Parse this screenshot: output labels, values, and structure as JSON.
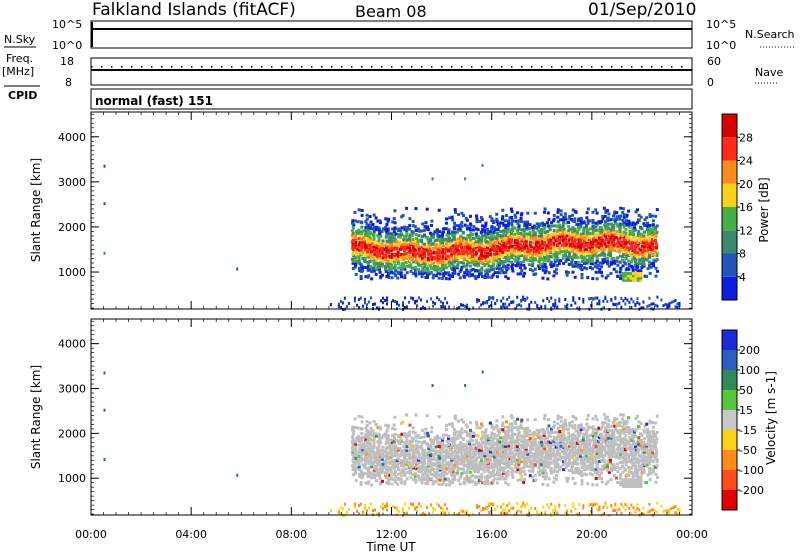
{
  "header": {
    "station": "Falkland Islands (fitACF)",
    "beam": "Beam 08",
    "date": "01/Sep/2010"
  },
  "status_panels": {
    "nsky_label": "N.Sky",
    "nsearch_label": "N.Search",
    "freq_label_1": "Freq.",
    "freq_label_2": "[MHz]",
    "nave_label": "Nave",
    "cpid_label": "CPID",
    "nsky_ticks": [
      "10^5",
      "10^0"
    ],
    "nsearch_ticks": [
      "10^5",
      "10^0"
    ],
    "freq_ticks": [
      "18",
      "8"
    ],
    "nave_ticks": [
      "60",
      "0"
    ],
    "cpid_text": "normal (fast) 151"
  },
  "chart_data": [
    {
      "type": "heatmap",
      "xlabel": "Time UT",
      "ylabel": "Slant Range [km]",
      "x_ticks": [
        "00:00",
        "04:00",
        "08:00",
        "12:00",
        "16:00",
        "20:00",
        "00:00"
      ],
      "y_ticks": [
        1000,
        2000,
        3000,
        4000
      ],
      "ylim": [
        180,
        4550
      ],
      "xlim_hours": [
        0,
        24
      ],
      "colorbar": {
        "label": "Power [dB]",
        "ticks": [
          4,
          8,
          12,
          16,
          20,
          24,
          28
        ],
        "range": [
          0,
          32
        ],
        "colors": [
          "#0a1fe0",
          "#2255b8",
          "#3a8a6a",
          "#44b040",
          "#ffd21a",
          "#ff8c1a",
          "#ff2a1a",
          "#d80000"
        ]
      },
      "scatter_band": {
        "start_h": 10.4,
        "end_h": 22.6,
        "center_km": [
          1600,
          1450,
          1500,
          1650,
          1700,
          1620
        ],
        "top_km": 2300
      }
    },
    {
      "type": "heatmap",
      "xlabel": "Time UT",
      "ylabel": "Slant Range [km]",
      "x_ticks": [
        "00:00",
        "04:00",
        "08:00",
        "12:00",
        "16:00",
        "20:00",
        "00:00"
      ],
      "y_ticks": [
        1000,
        2000,
        3000,
        4000
      ],
      "ylim": [
        180,
        4550
      ],
      "xlim_hours": [
        0,
        24
      ],
      "colorbar": {
        "label": "Velocity [m s-1]",
        "ticks": [
          200,
          100,
          50,
          15,
          -15,
          -50,
          -100,
          -200
        ],
        "colors": [
          "#1a2ad8",
          "#2a5fc0",
          "#2f8a5a",
          "#55c83a",
          "#c8c8c8",
          "#ffd21a",
          "#ff8c1a",
          "#ff4a1a",
          "#e00000"
        ]
      },
      "ground_scatter_color": "#bebebe"
    }
  ]
}
